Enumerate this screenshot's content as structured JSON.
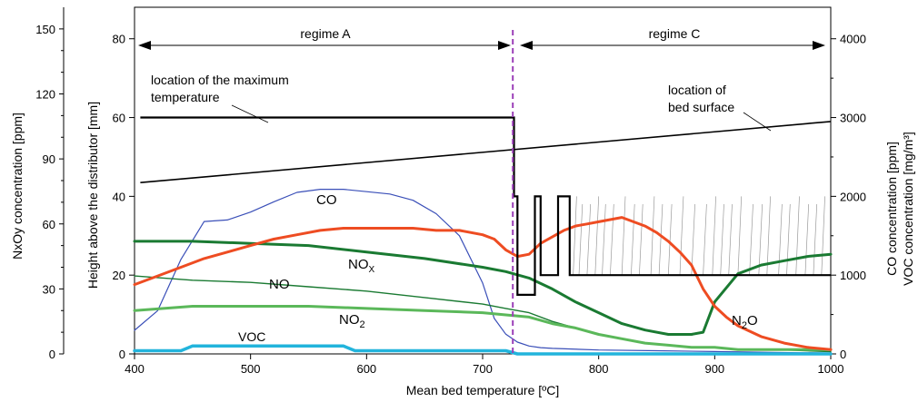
{
  "chart_data": {
    "type": "line",
    "xlabel": "Mean bed temperature [ºC]",
    "xlim": [
      400,
      1000
    ],
    "xticks": [
      400,
      500,
      600,
      700,
      800,
      900,
      1000
    ],
    "ylabel_outer": "NxOy concentration [ppm]",
    "ylim_outer": [
      0,
      160
    ],
    "yticks_outer": [
      0,
      30,
      60,
      90,
      120,
      150
    ],
    "ylabel_inner": "Height above the distributor [mm]",
    "ylim_inner": [
      0,
      88
    ],
    "yticks_inner": [
      0,
      20,
      40,
      60,
      80
    ],
    "ylabel_right": "CO concentration [ppm]",
    "ylabel_right_2": "VOC concentration [mg/m³]",
    "ylim_right": [
      0,
      4400
    ],
    "yticks_right": [
      0,
      1000,
      2000,
      3000,
      4000
    ],
    "regime_boundary_x": 726,
    "regime_labels": [
      "regime A",
      "regime C"
    ],
    "annotations": [
      {
        "line1": "location of the maximum",
        "line2": "temperature"
      },
      {
        "line1": "location of",
        "line2": "bed surface"
      }
    ],
    "series_labels": {
      "co": "CO",
      "nox_base": "NO",
      "nox_sub": "X",
      "no": "NO",
      "no2_base": "NO",
      "no2_sub": "2",
      "n2o_base": "N",
      "n2o_sub": "2",
      "n2o_tail": "O",
      "voc": "VOC"
    },
    "series": [
      {
        "key": "co",
        "axis": "right",
        "color": "#3a4fb8",
        "x": [
          400,
          420,
          440,
          460,
          480,
          500,
          520,
          540,
          560,
          580,
          600,
          620,
          640,
          660,
          680,
          700,
          710,
          720,
          730,
          740,
          750,
          760,
          800,
          850,
          900,
          950,
          1000
        ],
        "y": [
          300,
          550,
          1200,
          1680,
          1700,
          1800,
          1930,
          2050,
          2090,
          2090,
          2060,
          2030,
          1950,
          1780,
          1500,
          900,
          450,
          250,
          150,
          100,
          80,
          70,
          50,
          40,
          30,
          20,
          10
        ]
      },
      {
        "key": "nox",
        "axis": "outer",
        "color": "#1a7a32",
        "x": [
          400,
          450,
          500,
          550,
          600,
          650,
          700,
          720,
          740,
          760,
          780,
          800,
          820,
          840,
          860,
          870,
          880,
          890,
          900,
          920,
          940,
          960,
          980,
          1000
        ],
        "y": [
          52,
          52,
          51,
          50,
          47,
          44,
          40,
          38,
          35,
          30,
          24,
          19,
          14,
          11,
          9,
          9,
          9,
          10,
          24,
          37,
          41,
          43,
          45,
          46
        ]
      },
      {
        "key": "no",
        "axis": "outer",
        "color": "#1a7a32",
        "x": [
          400,
          450,
          500,
          550,
          600,
          650,
          700,
          720,
          740,
          760,
          780,
          800,
          820,
          840,
          860,
          880,
          900,
          920,
          950,
          1000
        ],
        "y": [
          36,
          34,
          33,
          31,
          29,
          26,
          23,
          21,
          19,
          15,
          12,
          9,
          7,
          5,
          4,
          3,
          3,
          2,
          2,
          1
        ]
      },
      {
        "key": "no2",
        "axis": "outer",
        "color": "#5bb85a",
        "x": [
          400,
          450,
          500,
          550,
          600,
          650,
          700,
          720,
          740,
          760,
          780,
          800,
          820,
          840,
          860,
          880,
          900,
          920,
          950,
          1000
        ],
        "y": [
          20,
          22,
          22,
          22,
          21,
          20,
          19,
          18,
          17,
          14,
          12,
          9,
          7,
          5,
          4,
          3,
          3,
          2,
          2,
          2
        ]
      },
      {
        "key": "n2o",
        "axis": "outer",
        "color": "#ee4c22",
        "x": [
          400,
          420,
          440,
          460,
          480,
          500,
          520,
          540,
          560,
          580,
          600,
          620,
          640,
          660,
          680,
          700,
          710,
          720,
          730,
          740,
          750,
          760,
          770,
          780,
          790,
          800,
          810,
          820,
          830,
          840,
          850,
          860,
          870,
          880,
          890,
          900,
          910,
          920,
          940,
          960,
          980,
          1000
        ],
        "y": [
          32,
          36,
          40,
          44,
          47,
          50,
          53,
          55,
          57,
          58,
          58,
          58,
          58,
          57,
          57,
          55,
          53,
          48,
          45,
          46,
          51,
          54,
          57,
          59,
          60,
          61,
          62,
          63,
          61,
          59,
          56,
          52,
          47,
          41,
          30,
          22,
          17,
          13,
          8,
          5,
          3,
          2
        ]
      },
      {
        "key": "voc",
        "axis": "right",
        "color": "#22b4dc",
        "x": [
          400,
          440,
          450,
          460,
          580,
          590,
          720,
          730,
          1000
        ],
        "y": [
          40,
          40,
          100,
          100,
          100,
          40,
          40,
          0,
          0
        ]
      }
    ],
    "height_lines": [
      {
        "key": "max_temperature_location",
        "color": "#000000",
        "x": [
          405,
          727,
          727,
          730,
          730,
          745,
          745,
          750,
          750,
          765,
          765,
          775,
          775,
          1000
        ],
        "y": [
          60,
          60,
          40,
          40,
          15,
          15,
          40,
          40,
          20,
          20,
          40,
          40,
          20,
          20
        ]
      },
      {
        "key": "bed_surface_location",
        "color": "#000000",
        "x": [
          405,
          1000
        ],
        "y": [
          43.5,
          59
        ]
      }
    ]
  }
}
